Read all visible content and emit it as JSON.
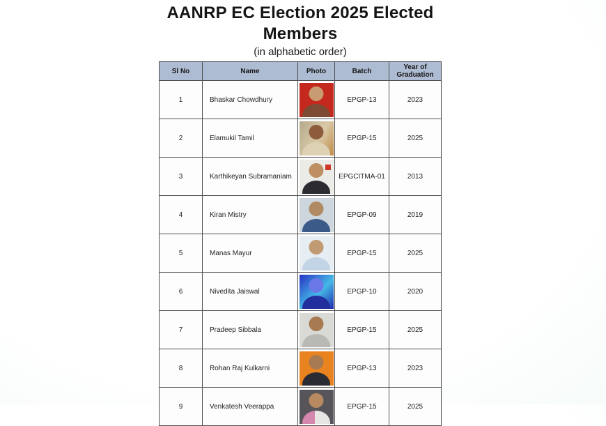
{
  "page": {
    "title_line1": "AANRP EC Election 2025 Elected",
    "title_line2": "Members",
    "subtitle": "(in alphabetic order)"
  },
  "colors": {
    "header_bg": "#aebcd3",
    "table_border": "#4f4f4f",
    "page_bg_center": "#ffffff",
    "page_bg_edge": "#eaf6f2"
  },
  "table": {
    "columns": [
      "Sl No",
      "Name",
      "Photo",
      "Batch",
      "Year of Graduation"
    ],
    "rows": [
      {
        "sl_no": "1",
        "name": "Bhaskar Chowdhury",
        "batch": "EPGP-13",
        "year": "2023",
        "photo": {
          "desc": "portrait-red-background",
          "bg": "#c5281c",
          "skin": "#c99b72",
          "shirt": "#7d4b33"
        }
      },
      {
        "sl_no": "2",
        "name": "Elamukil Tamil",
        "batch": "EPGP-15",
        "year": "2025",
        "photo": {
          "desc": "portrait-seated-indoor",
          "bg": "linear-gradient(120deg,#b5a98e,#d9c9a8 55%,#c08a45)",
          "skin": "#8d5c3c",
          "shirt": "#ddd2b4"
        }
      },
      {
        "sl_no": "3",
        "name": "Karthikeyan Subramaniam",
        "batch": "EPGCITMA-01",
        "year": "2013",
        "photo": {
          "desc": "portrait-dark-suit-office",
          "bg": "#ebebe7",
          "skin": "#bd8f63",
          "shirt": "#2b2b31",
          "accent": "#d03826"
        }
      },
      {
        "sl_no": "4",
        "name": "Kiran Mistry",
        "batch": "EPGP-09",
        "year": "2019",
        "photo": {
          "desc": "portrait-blue-suit",
          "bg": "#ccd6dc",
          "skin": "#b08a62",
          "shirt": "#3c5a88"
        }
      },
      {
        "sl_no": "5",
        "name": "Manas Mayur",
        "batch": "EPGP-15",
        "year": "2025",
        "photo": {
          "desc": "portrait-passport-style",
          "bg": "#e6edf3",
          "skin": "#c09a72",
          "shirt": "#c3d4e6"
        }
      },
      {
        "sl_no": "6",
        "name": "Nivedita Jaiswal",
        "batch": "EPGP-10",
        "year": "2020",
        "photo": {
          "desc": "portrait-blue-tinted",
          "bg": "linear-gradient(135deg,#2733c5,#45b8e6 55%,#1f2bb0)",
          "skin": "#6b79e8",
          "shirt": "#232e9e"
        }
      },
      {
        "sl_no": "7",
        "name": "Pradeep Sibbala",
        "batch": "EPGP-15",
        "year": "2025",
        "photo": {
          "desc": "portrait-bearded-gray-shirt",
          "bg": "#d9d9d5",
          "skin": "#a87a52",
          "shirt": "#b9b9b3"
        }
      },
      {
        "sl_no": "8",
        "name": "Rohan Raj Kulkarni",
        "batch": "EPGP-13",
        "year": "2023",
        "photo": {
          "desc": "portrait-orange-background",
          "bg": "#e8831f",
          "skin": "#a87a52",
          "shirt": "#2b2b33"
        }
      },
      {
        "sl_no": "9",
        "name": "Venkatesh Veerappa",
        "batch": "EPGP-15",
        "year": "2025",
        "photo": {
          "desc": "family-photo-studio",
          "bg": "#57555a",
          "skin": "#b98a62",
          "shirt": "linear-gradient(90deg,#d687ae 0 45%,#e8e6e4 45%)"
        }
      }
    ]
  }
}
